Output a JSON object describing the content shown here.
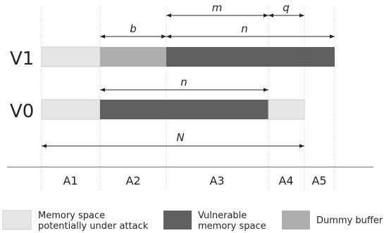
{
  "rows": {
    "v1": "V1",
    "v0": "V0"
  },
  "dimensions": {
    "m": "m",
    "q": "q",
    "b": "b",
    "n_top": "n",
    "n_mid": "n",
    "N": "N"
  },
  "regions": [
    "A1",
    "A2",
    "A3",
    "A4",
    "A5"
  ],
  "legend": [
    {
      "line1": "Memory space",
      "line2": "potentially under attack",
      "color": "#e6e6e6"
    },
    {
      "line1": "Vulnerable",
      "line2": "memory space",
      "color": "#606060"
    },
    {
      "line1": "Dummy buffer",
      "line2": "",
      "color": "#aeaeae"
    }
  ],
  "colors": {
    "light": "#e6e6e6",
    "dark": "#606060",
    "dummy": "#aeaeae",
    "line": "#222222",
    "guide": "#cccccc"
  }
}
